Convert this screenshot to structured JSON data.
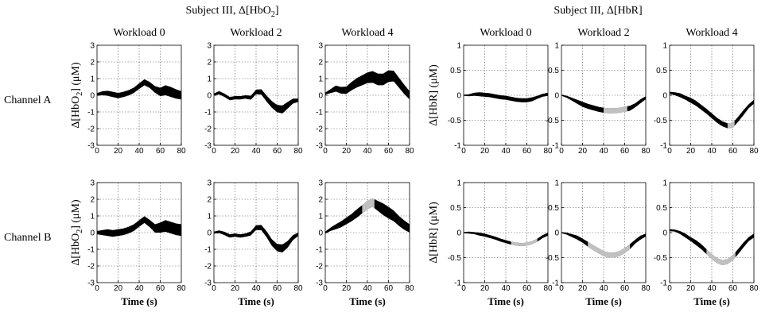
{
  "figure": {
    "group_titles": [
      {
        "prefix": "Subject III, Δ[HbO",
        "sub": "2",
        "suffix": "]"
      },
      {
        "prefix": "Subject III, Δ[HbR]",
        "sub": "",
        "suffix": ""
      }
    ],
    "row_labels": [
      "Channel A",
      "Channel B"
    ]
  },
  "chart_data": [
    {
      "type": "area",
      "title": "Workload 0",
      "row": "Channel A",
      "group": "HbO2",
      "xlabel": "",
      "ylabel_html": "HbO2",
      "xlim": [
        0,
        80
      ],
      "ylim": [
        -3,
        3
      ],
      "xticks": [
        0,
        20,
        40,
        60,
        80
      ],
      "yticks": [
        -3,
        -2,
        -1,
        0,
        1,
        2,
        3
      ],
      "grid": true,
      "x": [
        0,
        5,
        10,
        15,
        20,
        25,
        30,
        35,
        40,
        45,
        50,
        55,
        60,
        65,
        70,
        75,
        80
      ],
      "mean": [
        0.05,
        0.12,
        0.12,
        0.05,
        -0.02,
        0.05,
        0.15,
        0.3,
        0.55,
        0.78,
        0.62,
        0.35,
        0.2,
        0.3,
        0.2,
        0.08,
        0.0
      ],
      "half_width": [
        0.08,
        0.12,
        0.15,
        0.16,
        0.16,
        0.16,
        0.16,
        0.16,
        0.17,
        0.18,
        0.18,
        0.2,
        0.25,
        0.3,
        0.3,
        0.28,
        0.25
      ],
      "significant_ranges": []
    },
    {
      "type": "area",
      "title": "Workload 2",
      "row": "Channel A",
      "group": "HbO2",
      "xlabel": "",
      "xlim": [
        0,
        80
      ],
      "ylim": [
        -3,
        3
      ],
      "xticks": [
        0,
        20,
        40,
        60,
        80
      ],
      "yticks": [
        -3,
        -2,
        -1,
        0,
        1,
        2,
        3
      ],
      "grid": true,
      "x": [
        0,
        5,
        10,
        15,
        20,
        25,
        30,
        35,
        40,
        45,
        50,
        55,
        60,
        65,
        70,
        75,
        80
      ],
      "mean": [
        0.05,
        0.15,
        0.0,
        -0.2,
        -0.15,
        -0.15,
        -0.1,
        -0.15,
        0.2,
        0.2,
        -0.2,
        -0.55,
        -0.8,
        -0.85,
        -0.6,
        -0.35,
        -0.3
      ],
      "half_width": [
        0.06,
        0.1,
        0.1,
        0.1,
        0.1,
        0.1,
        0.1,
        0.12,
        0.14,
        0.16,
        0.18,
        0.2,
        0.22,
        0.24,
        0.2,
        0.15,
        0.1
      ],
      "significant_ranges": []
    },
    {
      "type": "area",
      "title": "Workload 4",
      "row": "Channel A",
      "group": "HbO2",
      "xlabel": "",
      "xlim": [
        0,
        80
      ],
      "ylim": [
        -3,
        3
      ],
      "xticks": [
        0,
        20,
        40,
        60,
        80
      ],
      "yticks": [
        -3,
        -2,
        -1,
        0,
        1,
        2,
        3
      ],
      "grid": true,
      "x": [
        0,
        5,
        10,
        15,
        20,
        25,
        30,
        35,
        40,
        45,
        50,
        55,
        60,
        65,
        70,
        75,
        80
      ],
      "mean": [
        0.1,
        0.25,
        0.4,
        0.3,
        0.3,
        0.55,
        0.75,
        0.9,
        1.05,
        1.1,
        0.95,
        0.95,
        1.15,
        1.15,
        0.75,
        0.35,
        0.0
      ],
      "half_width": [
        0.06,
        0.12,
        0.18,
        0.2,
        0.22,
        0.25,
        0.28,
        0.3,
        0.32,
        0.35,
        0.35,
        0.35,
        0.35,
        0.32,
        0.3,
        0.28,
        0.25
      ],
      "significant_ranges": []
    },
    {
      "type": "area",
      "title": "Workload 0",
      "row": "Channel A",
      "group": "HbR",
      "xlabel": "",
      "xlim": [
        0,
        80
      ],
      "ylim": [
        -1,
        1
      ],
      "xticks": [
        0,
        20,
        40,
        60,
        80
      ],
      "yticks": [
        -1,
        -0.5,
        0,
        0.5,
        1
      ],
      "grid": true,
      "x": [
        0,
        5,
        10,
        15,
        20,
        25,
        30,
        35,
        40,
        45,
        50,
        55,
        60,
        65,
        70,
        75,
        80
      ],
      "mean": [
        0.0,
        0.0,
        0.02,
        0.02,
        0.01,
        0.0,
        -0.02,
        -0.04,
        -0.05,
        -0.07,
        -0.09,
        -0.1,
        -0.1,
        -0.08,
        -0.04,
        0.0,
        0.02
      ],
      "half_width": [
        0.01,
        0.02,
        0.03,
        0.04,
        0.04,
        0.04,
        0.04,
        0.04,
        0.04,
        0.04,
        0.04,
        0.04,
        0.04,
        0.04,
        0.03,
        0.03,
        0.03
      ],
      "significant_ranges": []
    },
    {
      "type": "area",
      "title": "Workload 2",
      "row": "Channel A",
      "group": "HbR",
      "xlabel": "",
      "xlim": [
        0,
        80
      ],
      "ylim": [
        -1,
        1
      ],
      "xticks": [
        0,
        20,
        40,
        60,
        80
      ],
      "yticks": [
        -1,
        -0.5,
        0,
        0.5,
        1
      ],
      "grid": true,
      "x": [
        0,
        5,
        10,
        15,
        20,
        25,
        30,
        35,
        40,
        45,
        50,
        55,
        60,
        65,
        70,
        75,
        80
      ],
      "mean": [
        0.0,
        -0.03,
        -0.08,
        -0.13,
        -0.18,
        -0.22,
        -0.25,
        -0.28,
        -0.3,
        -0.31,
        -0.31,
        -0.3,
        -0.28,
        -0.26,
        -0.2,
        -0.12,
        -0.05
      ],
      "half_width": [
        0.01,
        0.02,
        0.03,
        0.04,
        0.05,
        0.05,
        0.05,
        0.05,
        0.05,
        0.05,
        0.05,
        0.05,
        0.05,
        0.05,
        0.04,
        0.04,
        0.03
      ],
      "significant_ranges": [
        [
          40,
          63
        ]
      ]
    },
    {
      "type": "area",
      "title": "Workload 4",
      "row": "Channel A",
      "group": "HbR",
      "xlabel": "",
      "xlim": [
        0,
        80
      ],
      "ylim": [
        -1,
        1
      ],
      "xticks": [
        0,
        20,
        40,
        60,
        80
      ],
      "yticks": [
        -1,
        -0.5,
        0,
        0.5,
        1
      ],
      "grid": true,
      "x": [
        0,
        5,
        10,
        15,
        20,
        25,
        30,
        35,
        40,
        45,
        50,
        55,
        60,
        65,
        70,
        75,
        80
      ],
      "mean": [
        0.05,
        0.03,
        0.0,
        -0.05,
        -0.1,
        -0.16,
        -0.24,
        -0.32,
        -0.41,
        -0.5,
        -0.57,
        -0.61,
        -0.6,
        -0.48,
        -0.35,
        -0.22,
        -0.13
      ],
      "half_width": [
        0.02,
        0.03,
        0.04,
        0.04,
        0.05,
        0.05,
        0.05,
        0.05,
        0.05,
        0.05,
        0.05,
        0.05,
        0.05,
        0.05,
        0.05,
        0.04,
        0.04
      ],
      "significant_ranges": [
        [
          55,
          62
        ]
      ]
    },
    {
      "type": "area",
      "title": "",
      "row": "Channel B",
      "group": "HbO2",
      "xlabel": "Time (s)",
      "xlim": [
        0,
        80
      ],
      "ylim": [
        -3,
        3
      ],
      "xticks": [
        0,
        20,
        40,
        60,
        80
      ],
      "yticks": [
        -3,
        -2,
        -1,
        0,
        1,
        2,
        3
      ],
      "grid": true,
      "x": [
        0,
        5,
        10,
        15,
        20,
        25,
        30,
        35,
        40,
        45,
        50,
        55,
        60,
        65,
        70,
        75,
        80
      ],
      "mean": [
        0.0,
        0.0,
        0.0,
        -0.05,
        0.0,
        0.05,
        0.15,
        0.3,
        0.55,
        0.78,
        0.55,
        0.25,
        0.3,
        0.4,
        0.3,
        0.2,
        0.15
      ],
      "half_width": [
        0.1,
        0.15,
        0.2,
        0.2,
        0.2,
        0.2,
        0.2,
        0.2,
        0.2,
        0.2,
        0.22,
        0.25,
        0.3,
        0.35,
        0.35,
        0.35,
        0.35
      ],
      "significant_ranges": []
    },
    {
      "type": "area",
      "title": "",
      "row": "Channel B",
      "group": "HbO2",
      "xlabel": "Time (s)",
      "xlim": [
        0,
        80
      ],
      "ylim": [
        -3,
        3
      ],
      "xticks": [
        0,
        20,
        40,
        60,
        80
      ],
      "yticks": [
        -3,
        -2,
        -1,
        0,
        1,
        2,
        3
      ],
      "grid": true,
      "x": [
        0,
        5,
        10,
        15,
        20,
        25,
        30,
        35,
        40,
        45,
        50,
        55,
        60,
        65,
        70,
        75,
        80
      ],
      "mean": [
        0.0,
        0.05,
        -0.05,
        -0.2,
        -0.15,
        -0.2,
        -0.15,
        -0.05,
        0.3,
        0.3,
        -0.1,
        -0.6,
        -0.9,
        -0.95,
        -0.7,
        -0.3,
        -0.1
      ],
      "half_width": [
        0.06,
        0.08,
        0.1,
        0.1,
        0.1,
        0.1,
        0.1,
        0.12,
        0.14,
        0.16,
        0.18,
        0.2,
        0.22,
        0.24,
        0.2,
        0.15,
        0.1
      ],
      "significant_ranges": []
    },
    {
      "type": "area",
      "title": "",
      "row": "Channel B",
      "group": "HbO2",
      "xlabel": "Time (s)",
      "xlim": [
        0,
        80
      ],
      "ylim": [
        -3,
        3
      ],
      "xticks": [
        0,
        20,
        40,
        60,
        80
      ],
      "yticks": [
        -3,
        -2,
        -1,
        0,
        1,
        2,
        3
      ],
      "grid": true,
      "x": [
        0,
        5,
        10,
        15,
        20,
        25,
        30,
        35,
        40,
        45,
        50,
        55,
        60,
        65,
        70,
        75,
        80
      ],
      "mean": [
        0.0,
        0.2,
        0.35,
        0.5,
        0.7,
        0.9,
        1.15,
        1.4,
        1.65,
        1.8,
        1.6,
        1.4,
        1.2,
        1.0,
        0.7,
        0.45,
        0.25
      ],
      "half_width": [
        0.06,
        0.1,
        0.15,
        0.18,
        0.2,
        0.22,
        0.25,
        0.25,
        0.25,
        0.25,
        0.3,
        0.35,
        0.35,
        0.32,
        0.3,
        0.28,
        0.25
      ],
      "significant_ranges": [
        [
          35,
          47
        ]
      ]
    },
    {
      "type": "area",
      "title": "",
      "row": "Channel B",
      "group": "HbR",
      "xlabel": "Time (s)",
      "xlim": [
        0,
        80
      ],
      "ylim": [
        -1,
        1
      ],
      "xticks": [
        0,
        20,
        40,
        60,
        80
      ],
      "yticks": [
        -1,
        -0.5,
        0,
        0.5,
        1
      ],
      "grid": true,
      "x": [
        0,
        5,
        10,
        15,
        20,
        25,
        30,
        35,
        40,
        45,
        50,
        55,
        60,
        65,
        70,
        75,
        80
      ],
      "mean": [
        0.0,
        0.0,
        -0.01,
        -0.03,
        -0.05,
        -0.08,
        -0.11,
        -0.15,
        -0.18,
        -0.21,
        -0.23,
        -0.24,
        -0.23,
        -0.2,
        -0.15,
        -0.08,
        -0.03
      ],
      "half_width": [
        0.01,
        0.02,
        0.02,
        0.03,
        0.03,
        0.03,
        0.03,
        0.03,
        0.03,
        0.03,
        0.03,
        0.03,
        0.03,
        0.03,
        0.03,
        0.03,
        0.03
      ],
      "significant_ranges": [
        [
          45,
          70
        ]
      ]
    },
    {
      "type": "area",
      "title": "",
      "row": "Channel B",
      "group": "HbR",
      "xlabel": "Time (s)",
      "xlim": [
        0,
        80
      ],
      "ylim": [
        -1,
        1
      ],
      "xticks": [
        0,
        20,
        40,
        60,
        80
      ],
      "yticks": [
        -1,
        -0.5,
        0,
        0.5,
        1
      ],
      "grid": true,
      "x": [
        0,
        5,
        10,
        15,
        20,
        25,
        30,
        35,
        40,
        45,
        50,
        55,
        60,
        65,
        70,
        75,
        80
      ],
      "mean": [
        0.0,
        -0.02,
        -0.06,
        -0.1,
        -0.16,
        -0.23,
        -0.3,
        -0.36,
        -0.42,
        -0.45,
        -0.45,
        -0.42,
        -0.36,
        -0.28,
        -0.18,
        -0.1,
        -0.05
      ],
      "half_width": [
        0.01,
        0.02,
        0.03,
        0.04,
        0.04,
        0.05,
        0.05,
        0.05,
        0.05,
        0.05,
        0.05,
        0.05,
        0.05,
        0.05,
        0.04,
        0.04,
        0.03
      ],
      "significant_ranges": [
        [
          25,
          65
        ]
      ]
    },
    {
      "type": "area",
      "title": "",
      "row": "Channel B",
      "group": "HbR",
      "xlabel": "Time (s)",
      "xlim": [
        0,
        80
      ],
      "ylim": [
        -1,
        1
      ],
      "xticks": [
        0,
        20,
        40,
        60,
        80
      ],
      "yticks": [
        -1,
        -0.5,
        0,
        0.5,
        1
      ],
      "grid": true,
      "x": [
        0,
        5,
        10,
        15,
        20,
        25,
        30,
        35,
        40,
        45,
        50,
        55,
        60,
        65,
        70,
        75,
        80
      ],
      "mean": [
        0.05,
        0.04,
        0.0,
        -0.06,
        -0.13,
        -0.2,
        -0.28,
        -0.38,
        -0.48,
        -0.56,
        -0.6,
        -0.58,
        -0.5,
        -0.38,
        -0.25,
        -0.13,
        -0.06
      ],
      "half_width": [
        0.02,
        0.02,
        0.03,
        0.04,
        0.04,
        0.05,
        0.05,
        0.05,
        0.05,
        0.05,
        0.05,
        0.05,
        0.05,
        0.05,
        0.05,
        0.04,
        0.04
      ],
      "significant_ranges": [
        [
          35,
          63
        ]
      ]
    }
  ]
}
